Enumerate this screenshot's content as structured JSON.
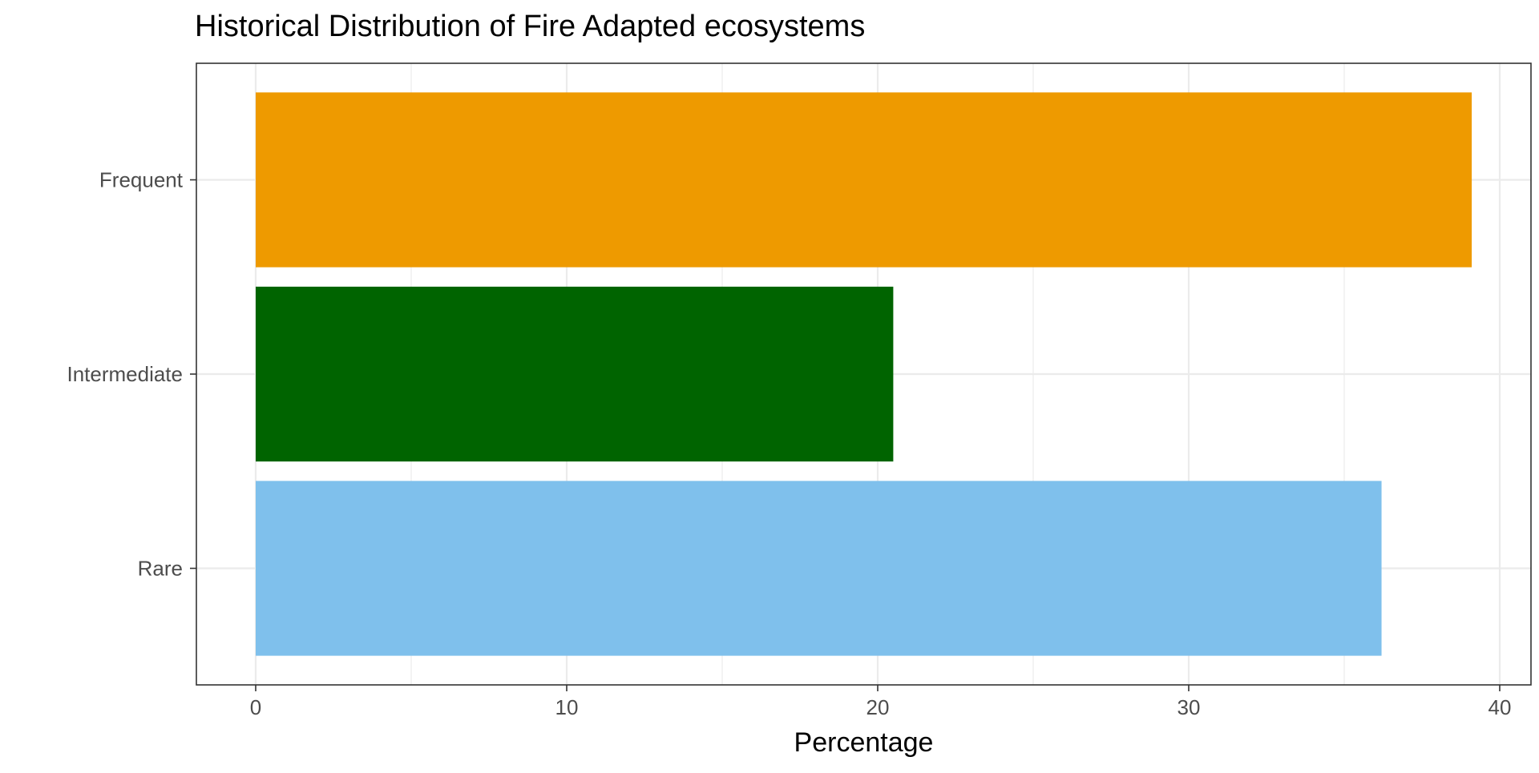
{
  "chart_data": {
    "type": "bar",
    "orientation": "horizontal",
    "title": "Historical Distribution of Fire Adapted ecosystems",
    "xlabel": "Percentage",
    "ylabel": "",
    "categories": [
      "Frequent",
      "Intermediate",
      "Rare"
    ],
    "values": [
      39.1,
      20.5,
      36.2
    ],
    "colors": [
      "#EE9A00",
      "#006400",
      "#7FC0EC"
    ],
    "xlim": [
      0,
      41.3
    ],
    "xticks": [
      0,
      10,
      20,
      30,
      40
    ],
    "xtick_labels": [
      "0",
      "10",
      "20",
      "30",
      "40"
    ],
    "grid": true,
    "legend": "none"
  },
  "theme": {
    "grid_color": "#EBEBEB",
    "axis_text_color": "#4D4D4D",
    "border_color": "#333333"
  }
}
